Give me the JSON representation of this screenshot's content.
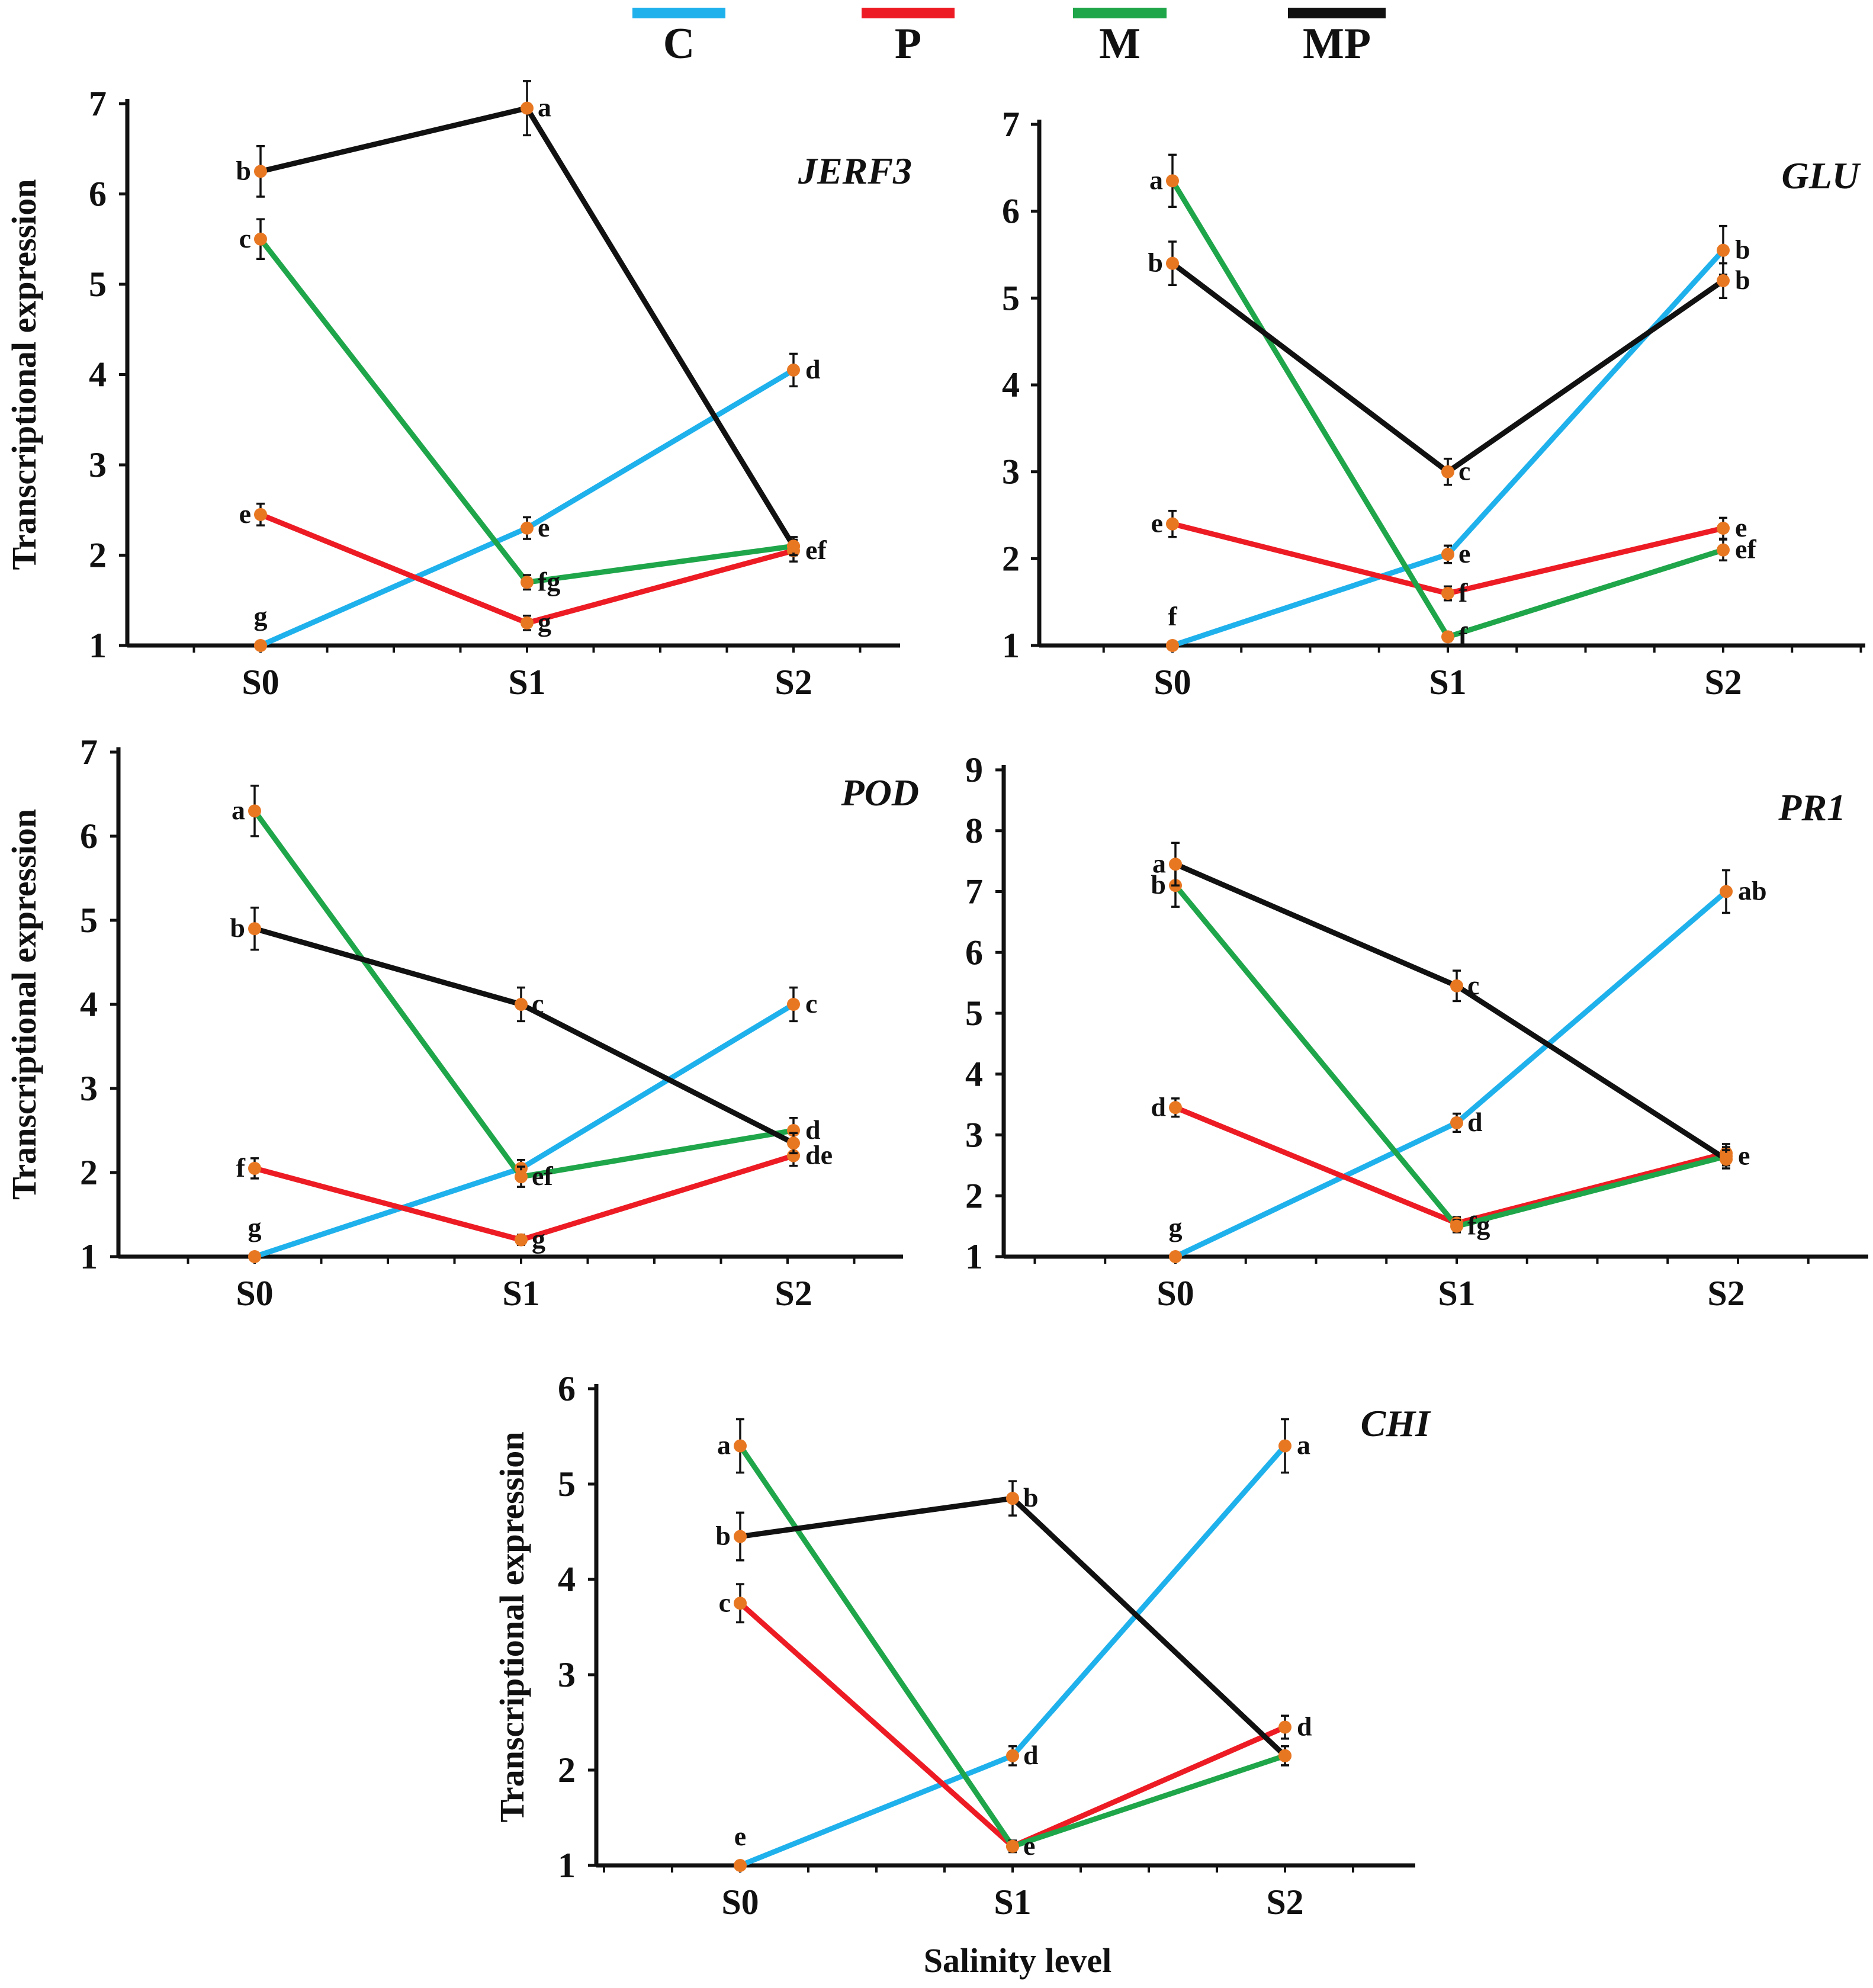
{
  "chart_data": [
    {
      "type": "line",
      "title": "JERF3",
      "xlabel": "",
      "ylabel": "Transcriptional expression",
      "categories": [
        "S0",
        "S1",
        "S2"
      ],
      "ylim": [
        1,
        7
      ],
      "yticks": [
        1,
        2,
        3,
        4,
        5,
        6,
        7
      ],
      "series": [
        {
          "name": "C",
          "values": [
            1.0,
            2.3,
            4.05
          ],
          "errors": [
            0.02,
            0.12,
            0.18
          ],
          "letters": [
            "g",
            "e",
            "d"
          ]
        },
        {
          "name": "P",
          "values": [
            2.45,
            1.25,
            2.05
          ],
          "errors": [
            0.12,
            0.08,
            0.12
          ],
          "letters": [
            "e",
            "g",
            "ef"
          ]
        },
        {
          "name": "M",
          "values": [
            5.5,
            1.7,
            2.1
          ],
          "errors": [
            0.22,
            0.08,
            0.1
          ],
          "letters": [
            "c",
            "fg",
            ""
          ]
        },
        {
          "name": "MP",
          "values": [
            6.25,
            6.95,
            2.1
          ],
          "errors": [
            0.28,
            0.3,
            0.1
          ],
          "letters": [
            "b",
            "a",
            ""
          ]
        }
      ]
    },
    {
      "type": "line",
      "title": "GLU",
      "xlabel": "",
      "ylabel": "",
      "categories": [
        "S0",
        "S1",
        "S2"
      ],
      "ylim": [
        1,
        7
      ],
      "yticks": [
        1,
        2,
        3,
        4,
        5,
        6,
        7
      ],
      "series": [
        {
          "name": "C",
          "values": [
            1.0,
            2.05,
            5.55
          ],
          "errors": [
            0.02,
            0.1,
            0.28
          ],
          "letters": [
            "f",
            "e",
            "b"
          ]
        },
        {
          "name": "P",
          "values": [
            2.4,
            1.6,
            2.35
          ],
          "errors": [
            0.15,
            0.08,
            0.12
          ],
          "letters": [
            "e",
            "f",
            "e"
          ]
        },
        {
          "name": "M",
          "values": [
            6.35,
            1.1,
            2.1
          ],
          "errors": [
            0.3,
            0.05,
            0.12
          ],
          "letters": [
            "a",
            "f",
            "ef"
          ]
        },
        {
          "name": "MP",
          "values": [
            5.4,
            3.0,
            5.2
          ],
          "errors": [
            0.25,
            0.15,
            0.2
          ],
          "letters": [
            "b",
            "c",
            "b"
          ]
        }
      ]
    },
    {
      "type": "line",
      "title": "POD",
      "xlabel": "",
      "ylabel": "Transcriptional expression",
      "categories": [
        "S0",
        "S1",
        "S2"
      ],
      "ylim": [
        1,
        7
      ],
      "yticks": [
        1,
        2,
        3,
        4,
        5,
        6,
        7
      ],
      "series": [
        {
          "name": "C",
          "values": [
            1.0,
            2.05,
            4.0
          ],
          "errors": [
            0.02,
            0.1,
            0.2
          ],
          "letters": [
            "g",
            "",
            "c"
          ]
        },
        {
          "name": "P",
          "values": [
            2.05,
            1.2,
            2.2
          ],
          "errors": [
            0.12,
            0.06,
            0.12
          ],
          "letters": [
            "f",
            "g",
            "de"
          ]
        },
        {
          "name": "M",
          "values": [
            6.3,
            1.95,
            2.5
          ],
          "errors": [
            0.3,
            0.12,
            0.15
          ],
          "letters": [
            "a",
            "ef",
            "d"
          ]
        },
        {
          "name": "MP",
          "values": [
            4.9,
            4.0,
            2.35
          ],
          "errors": [
            0.25,
            0.2,
            0.12
          ],
          "letters": [
            "b",
            "c",
            ""
          ]
        }
      ]
    },
    {
      "type": "line",
      "title": "PR1",
      "xlabel": "",
      "ylabel": "",
      "categories": [
        "S0",
        "S1",
        "S2"
      ],
      "ylim": [
        1,
        9
      ],
      "yticks": [
        1,
        2,
        3,
        4,
        5,
        6,
        7,
        8,
        9
      ],
      "series": [
        {
          "name": "C",
          "values": [
            1.0,
            3.2,
            7.0
          ],
          "errors": [
            0.02,
            0.15,
            0.35
          ],
          "letters": [
            "g",
            "d",
            "ab"
          ]
        },
        {
          "name": "P",
          "values": [
            3.45,
            1.55,
            2.7
          ],
          "errors": [
            0.15,
            0.1,
            0.15
          ],
          "letters": [
            "d",
            "",
            ""
          ]
        },
        {
          "name": "M",
          "values": [
            7.1,
            1.5,
            2.65
          ],
          "errors": [
            0.35,
            0.1,
            0.15
          ],
          "letters": [
            "b",
            "fg",
            "e"
          ]
        },
        {
          "name": "MP",
          "values": [
            7.45,
            5.45,
            2.6
          ],
          "errors": [
            0.35,
            0.25,
            0.15
          ],
          "letters": [
            "a",
            "c",
            ""
          ]
        }
      ]
    },
    {
      "type": "line",
      "title": "CHI",
      "xlabel": "Salinity level",
      "ylabel": "Transcriptional expression",
      "categories": [
        "S0",
        "S1",
        "S2"
      ],
      "ylim": [
        1,
        6
      ],
      "yticks": [
        1,
        2,
        3,
        4,
        5,
        6
      ],
      "series": [
        {
          "name": "C",
          "values": [
            1.0,
            2.15,
            5.4
          ],
          "errors": [
            0.02,
            0.1,
            0.28
          ],
          "letters": [
            "e",
            "d",
            "a"
          ]
        },
        {
          "name": "P",
          "values": [
            3.75,
            1.2,
            2.45
          ],
          "errors": [
            0.2,
            0.06,
            0.12
          ],
          "letters": [
            "c",
            "e",
            "d"
          ]
        },
        {
          "name": "M",
          "values": [
            5.4,
            1.2,
            2.15
          ],
          "errors": [
            0.28,
            0.06,
            0.1
          ],
          "letters": [
            "a",
            "",
            ""
          ]
        },
        {
          "name": "MP",
          "values": [
            4.45,
            4.85,
            2.15
          ],
          "errors": [
            0.25,
            0.18,
            0.1
          ],
          "letters": [
            "b",
            "b",
            ""
          ]
        }
      ]
    }
  ],
  "legend": [
    {
      "name": "C",
      "color": "#1fb1ec"
    },
    {
      "name": "P",
      "color": "#ed1c24"
    },
    {
      "name": "M",
      "color": "#1fa64a"
    },
    {
      "name": "MP",
      "color": "#111111"
    }
  ],
  "marker_color": "#e87722"
}
